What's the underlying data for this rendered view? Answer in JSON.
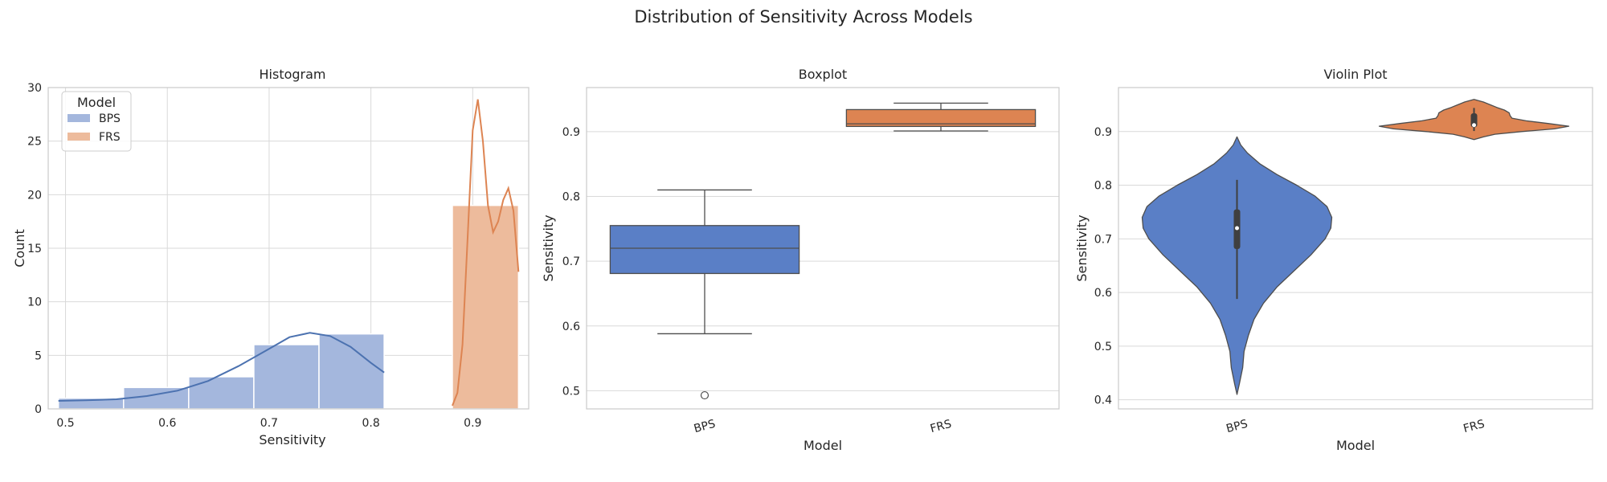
{
  "title": "Distribution of Sensitivity Across Models",
  "colors": {
    "BPS": "#5a7fc6",
    "FRS": "#dd8452",
    "BPS_hist": "#a4b7dd",
    "FRS_hist": "#edbb9c",
    "BPS_kde": "#4c72b0",
    "grid": "#d9d9d9",
    "frame": "#cccccc",
    "text": "#262626",
    "box_line": "#4d4d4d"
  },
  "chart_data": [
    {
      "type": "histogram",
      "title": "Histogram",
      "xlabel": "Sensitivity",
      "ylabel": "Count",
      "xlim": [
        0.483,
        0.955
      ],
      "ylim": [
        0,
        30
      ],
      "xticks": [
        "0.5",
        "0.6",
        "0.7",
        "0.8",
        "0.9"
      ],
      "yticks": [
        "0",
        "5",
        "10",
        "15",
        "20",
        "25",
        "30"
      ],
      "legend": {
        "title": "Model",
        "position": "top-left",
        "entries": [
          "BPS",
          "FRS"
        ]
      },
      "series": [
        {
          "name": "BPS",
          "bins": [
            {
              "x0": 0.493,
              "x1": 0.557,
              "count": 1
            },
            {
              "x0": 0.557,
              "x1": 0.621,
              "count": 2
            },
            {
              "x0": 0.621,
              "x1": 0.685,
              "count": 3
            },
            {
              "x0": 0.685,
              "x1": 0.749,
              "count": 6
            },
            {
              "x0": 0.749,
              "x1": 0.813,
              "count": 7
            }
          ],
          "kde": [
            [
              0.493,
              0.75
            ],
            [
              0.52,
              0.8
            ],
            [
              0.55,
              0.9
            ],
            [
              0.58,
              1.2
            ],
            [
              0.61,
              1.7
            ],
            [
              0.64,
              2.6
            ],
            [
              0.67,
              4.0
            ],
            [
              0.7,
              5.6
            ],
            [
              0.72,
              6.7
            ],
            [
              0.74,
              7.1
            ],
            [
              0.76,
              6.8
            ],
            [
              0.78,
              5.8
            ],
            [
              0.8,
              4.3
            ],
            [
              0.813,
              3.4
            ]
          ]
        },
        {
          "name": "FRS",
          "bins": [
            {
              "x0": 0.88,
              "x1": 0.945,
              "count": 19
            }
          ],
          "kde": [
            [
              0.88,
              0.3
            ],
            [
              0.885,
              1.5
            ],
            [
              0.89,
              6.0
            ],
            [
              0.895,
              16.0
            ],
            [
              0.9,
              26.0
            ],
            [
              0.905,
              28.9
            ],
            [
              0.91,
              25.0
            ],
            [
              0.915,
              19.0
            ],
            [
              0.92,
              16.5
            ],
            [
              0.925,
              17.5
            ],
            [
              0.93,
              19.5
            ],
            [
              0.935,
              20.6
            ],
            [
              0.94,
              18.5
            ],
            [
              0.945,
              12.8
            ]
          ]
        }
      ]
    },
    {
      "type": "box",
      "title": "Boxplot",
      "xlabel": "Model",
      "ylabel": "Sensitivity",
      "ylim": [
        0.472,
        0.968
      ],
      "yticks": [
        "0.5",
        "0.6",
        "0.7",
        "0.8",
        "0.9"
      ],
      "categories": [
        "BPS",
        "FRS"
      ],
      "boxes": [
        {
          "name": "BPS",
          "whislo": 0.588,
          "q1": 0.681,
          "med": 0.72,
          "q3": 0.755,
          "whishi": 0.81,
          "fliers": [
            0.493
          ]
        },
        {
          "name": "FRS",
          "whislo": 0.901,
          "q1": 0.908,
          "med": 0.912,
          "q3": 0.934,
          "whishi": 0.944,
          "fliers": []
        }
      ]
    },
    {
      "type": "violin",
      "title": "Violin Plot",
      "xlabel": "Model",
      "ylabel": "Sensitivity",
      "ylim": [
        0.383,
        0.982
      ],
      "yticks": [
        "0.4",
        "0.5",
        "0.6",
        "0.7",
        "0.8",
        "0.9"
      ],
      "categories": [
        "BPS",
        "FRS"
      ],
      "violins": [
        {
          "name": "BPS",
          "min": 0.588,
          "q1": 0.681,
          "med": 0.72,
          "q3": 0.755,
          "max": 0.81,
          "profile": [
            [
              0.41,
              0.0
            ],
            [
              0.43,
              0.025
            ],
            [
              0.46,
              0.06
            ],
            [
              0.49,
              0.075
            ],
            [
              0.52,
              0.12
            ],
            [
              0.55,
              0.18
            ],
            [
              0.58,
              0.28
            ],
            [
              0.61,
              0.42
            ],
            [
              0.64,
              0.6
            ],
            [
              0.67,
              0.78
            ],
            [
              0.7,
              0.93
            ],
            [
              0.72,
              0.99
            ],
            [
              0.74,
              1.0
            ],
            [
              0.76,
              0.95
            ],
            [
              0.78,
              0.82
            ],
            [
              0.8,
              0.63
            ],
            [
              0.82,
              0.42
            ],
            [
              0.84,
              0.24
            ],
            [
              0.86,
              0.11
            ],
            [
              0.875,
              0.04
            ],
            [
              0.89,
              0.0
            ]
          ]
        },
        {
          "name": "FRS",
          "min": 0.901,
          "q1": 0.908,
          "med": 0.912,
          "q3": 0.934,
          "max": 0.944,
          "profile": [
            [
              0.885,
              0.0
            ],
            [
              0.89,
              0.1
            ],
            [
              0.895,
              0.22
            ],
            [
              0.9,
              0.5
            ],
            [
              0.905,
              0.85
            ],
            [
              0.91,
              1.0
            ],
            [
              0.915,
              0.78
            ],
            [
              0.92,
              0.55
            ],
            [
              0.925,
              0.4
            ],
            [
              0.93,
              0.38
            ],
            [
              0.935,
              0.37
            ],
            [
              0.94,
              0.32
            ],
            [
              0.945,
              0.24
            ],
            [
              0.95,
              0.17
            ],
            [
              0.955,
              0.1
            ],
            [
              0.96,
              0.0
            ]
          ]
        }
      ]
    }
  ]
}
